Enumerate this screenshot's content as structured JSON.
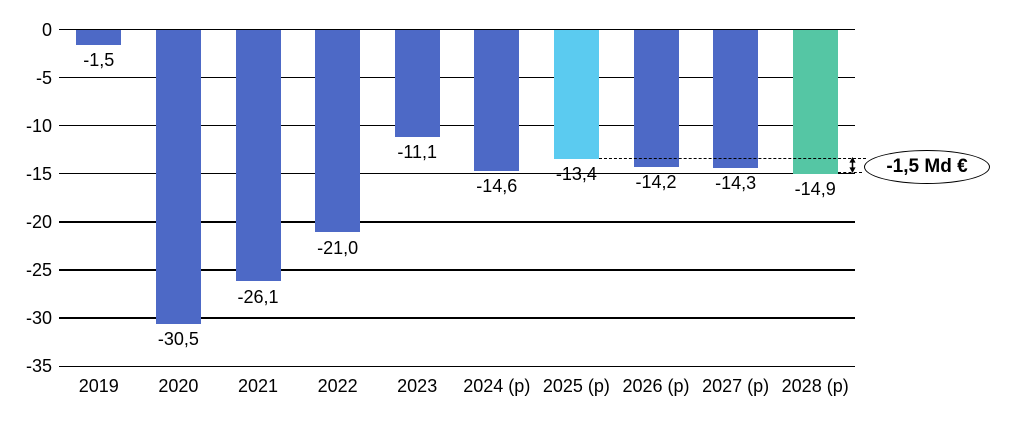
{
  "chart_data": {
    "type": "bar",
    "title": "",
    "xlabel": "",
    "ylabel": "",
    "unit": "Md €",
    "grid": true,
    "legend": "none",
    "ylim": [
      -35,
      0
    ],
    "categories": [
      "2019",
      "2020",
      "2021",
      "2022",
      "2023",
      "2024 (p)",
      "2025 (p)",
      "2026 (p)",
      "2027 (p)",
      "2028 (p)"
    ],
    "values": [
      -1.5,
      -30.5,
      -26.1,
      -21.0,
      -11.1,
      -14.6,
      -13.4,
      -14.2,
      -14.3,
      -14.9
    ],
    "value_labels": [
      "-1,5",
      "-30,5",
      "-26,1",
      "-21,0",
      "-11,1",
      "-14,6",
      "-13,4",
      "-14,2",
      "-14,3",
      "-14,9"
    ],
    "bar_colors": [
      "#4D69C6",
      "#4D69C6",
      "#4D69C6",
      "#4D69C6",
      "#4D69C6",
      "#4D69C6",
      "#5BCBF0",
      "#4D69C6",
      "#4D69C6",
      "#55C6A4"
    ],
    "colors": {
      "default_bar": "#4D69C6",
      "highlight_2025": "#5BCBF0",
      "highlight_2028": "#55C6A4",
      "gridline": "#000000",
      "text": "#000000"
    },
    "yticks": [
      {
        "value": 0,
        "label": "0"
      },
      {
        "value": -5,
        "label": "-5"
      },
      {
        "value": -10,
        "label": "-10"
      },
      {
        "value": -15,
        "label": "-15"
      },
      {
        "value": -20,
        "label": "-20"
      },
      {
        "value": -25,
        "label": "-25"
      },
      {
        "value": -30,
        "label": "-30"
      },
      {
        "value": -35,
        "label": "-35"
      }
    ],
    "annotation": {
      "label": "-1,5 Md €",
      "from_value": -13.4,
      "to_value": -14.9,
      "from_index": 6,
      "to_index": 9,
      "from_category": "2025 (p)",
      "to_category": "2028 (p)"
    }
  }
}
